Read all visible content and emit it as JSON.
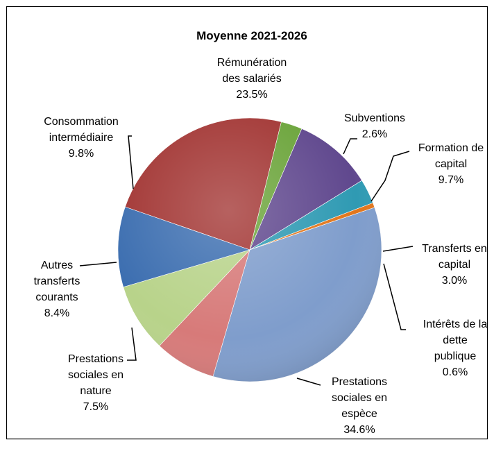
{
  "chart_data": {
    "type": "pie",
    "title": "Moyenne 2021-2026",
    "slices": [
      {
        "label": "Rémunération des salariés",
        "label_lines": [
          "Rémunération",
          "des salariés"
        ],
        "value": 23.5,
        "value_text": "23.5%",
        "color": "#a23533"
      },
      {
        "label": "Subventions",
        "label_lines": [
          "Subventions"
        ],
        "value": 2.6,
        "value_text": "2.6%",
        "color": "#6ba43a"
      },
      {
        "label": "Formation de capital",
        "label_lines": [
          "Formation de",
          "capital"
        ],
        "value": 9.7,
        "value_text": "9.7%",
        "color": "#60488e"
      },
      {
        "label": "Transferts en capital",
        "label_lines": [
          "Transferts en",
          "capital"
        ],
        "value": 3.0,
        "value_text": "3.0%",
        "color": "#2f9ab3"
      },
      {
        "label": "Intérêts de la dette publique",
        "label_lines": [
          "Intérêts de la",
          "dette",
          "publique"
        ],
        "value": 0.6,
        "value_text": "0.6%",
        "color": "#e2761c"
      },
      {
        "label": "Prestations sociales en espèce",
        "label_lines": [
          "Prestations",
          "sociales en",
          "espèce"
        ],
        "value": 34.6,
        "value_text": "34.6%",
        "color": "#7f9dcc"
      },
      {
        "label": "Prestations sociales en nature",
        "label_lines": [
          "Prestations",
          "sociales en",
          "nature"
        ],
        "value": 7.5,
        "value_text": "7.5%",
        "color": "#d77a79"
      },
      {
        "label": "Autres transferts courants",
        "label_lines": [
          "Autres",
          "transferts",
          "courants"
        ],
        "value": 8.4,
        "value_text": "8.4%",
        "color": "#b8d38a"
      },
      {
        "label": "Consommation intermédiaire",
        "label_lines": [
          "Consommation",
          "intermédiaire"
        ],
        "value": 9.8,
        "value_text": "9.8%",
        "color": "#3c6eb0"
      }
    ]
  }
}
